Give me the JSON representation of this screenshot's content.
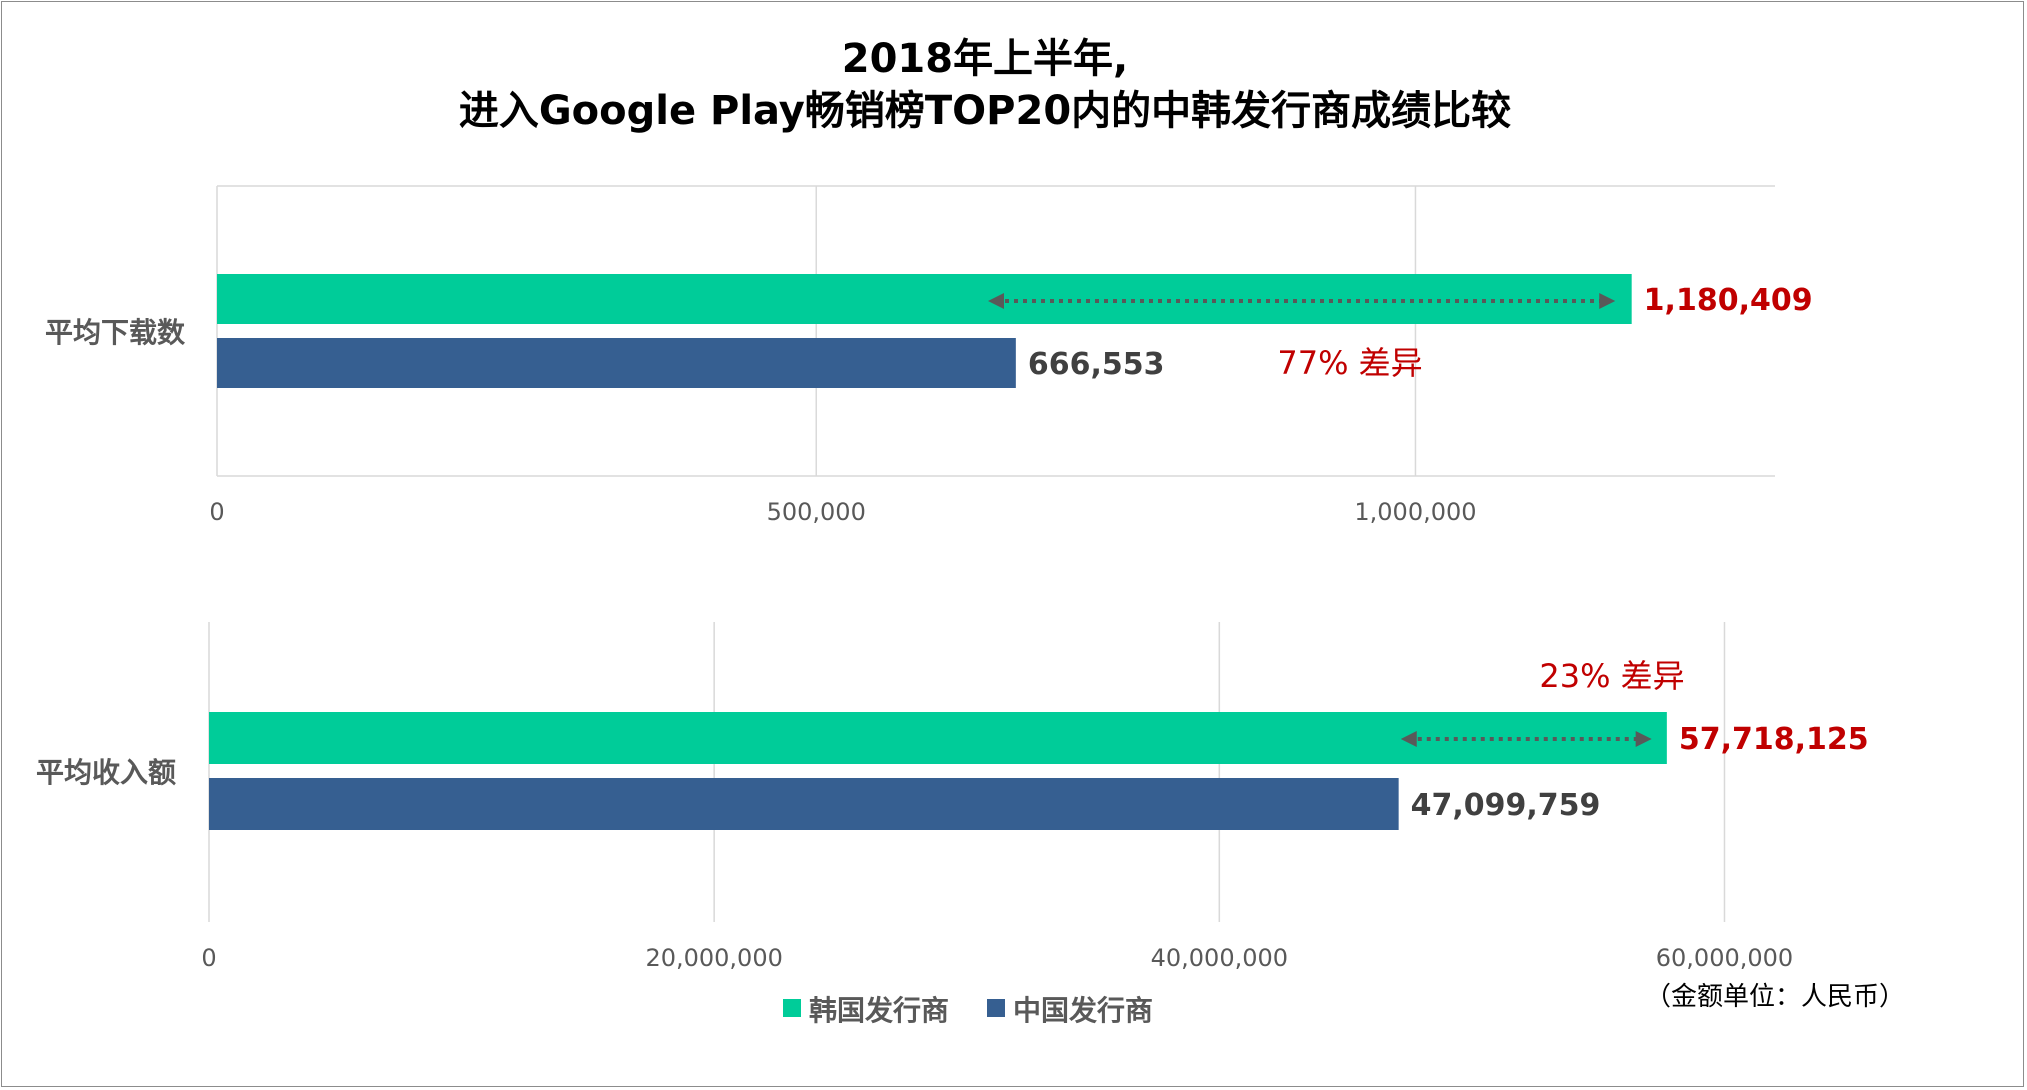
{
  "title_line1": "2018年上半年,",
  "title_line2": "进入Google Play畅销榜TOP20内的中韩发行商成绩比较",
  "colors": {
    "korea": "#00cc99",
    "china": "#365f91",
    "highlight": "#c00000",
    "value_text": "#404040"
  },
  "chart_data": [
    {
      "type": "bar",
      "orientation": "horizontal",
      "category": "平均下载数",
      "series": [
        {
          "name": "韩国发行商",
          "value": 1180409,
          "label": "1,180,409",
          "color": "#00cc99",
          "label_color": "#c00000"
        },
        {
          "name": "中国发行商",
          "value": 666553,
          "label": "666,553",
          "color": "#365f91",
          "label_color": "#404040"
        }
      ],
      "xlim": [
        0,
        1300000
      ],
      "ticks": [
        0,
        500000,
        1000000
      ],
      "tick_labels": [
        "0",
        "500,000",
        "1,000,000"
      ],
      "annotation": "77% 差异",
      "arrow_range": [
        650000,
        1160000
      ],
      "grid": true
    },
    {
      "type": "bar",
      "orientation": "horizontal",
      "category": "平均收入额",
      "series": [
        {
          "name": "韩国发行商",
          "value": 57718125,
          "label": "57,718,125",
          "color": "#00cc99",
          "label_color": "#c00000"
        },
        {
          "name": "中国发行商",
          "value": 47099759,
          "label": "47,099,759",
          "color": "#365f91",
          "label_color": "#404040"
        }
      ],
      "xlim": [
        0,
        62000000
      ],
      "ticks": [
        0,
        20000000,
        40000000,
        60000000
      ],
      "tick_labels": [
        "0",
        "20,000,000",
        "40,000,000",
        "60,000,000"
      ],
      "annotation": "23% 差异",
      "arrow_range": [
        47500000,
        56800000
      ],
      "grid": true
    }
  ],
  "legend": [
    {
      "name": "韩国发行商",
      "color": "#00cc99"
    },
    {
      "name": "中国发行商",
      "color": "#365f91"
    }
  ],
  "unit_note": "（金额单位：人民币）"
}
